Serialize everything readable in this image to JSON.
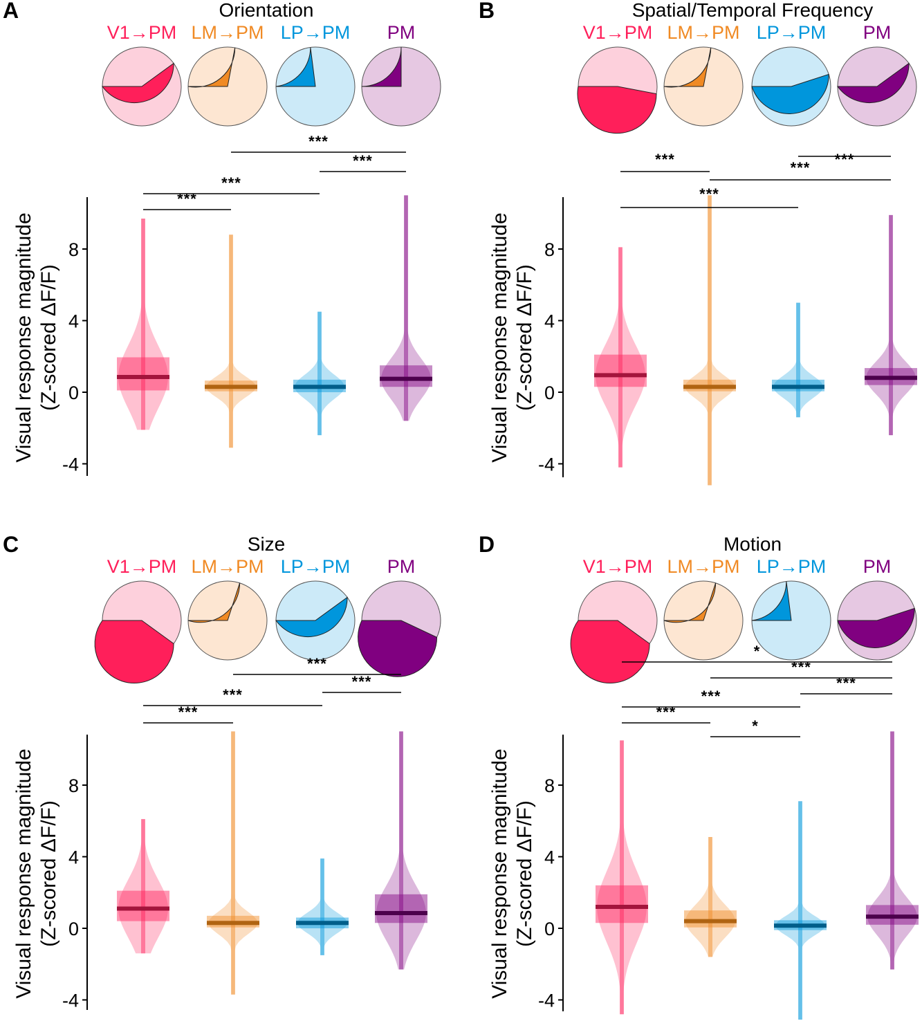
{
  "chart_data": [
    {
      "type": "violin",
      "panel_letter": "A",
      "title": "Orientation",
      "groups": [
        "V1→PM",
        "LM→PM",
        "LP→PM",
        "PM"
      ],
      "ylabel_line1": "Visual response magnitude",
      "ylabel_line2": "(Z-scored ΔF/F)",
      "yticks": [
        "8",
        "4",
        "0",
        "-4"
      ],
      "ylim": [
        -4.8,
        11
      ],
      "pie_selective_fraction": [
        0.4,
        0.28,
        0.23,
        0.25
      ],
      "medians": [
        0.85,
        0.3,
        0.3,
        0.75
      ],
      "iqr": [
        [
          0.1,
          1.95
        ],
        [
          0.05,
          0.65
        ],
        [
          0.0,
          0.7
        ],
        [
          0.3,
          1.5
        ]
      ],
      "ranges": [
        [
          -2.1,
          9.7
        ],
        [
          -3.1,
          8.8
        ],
        [
          -2.4,
          4.5
        ],
        [
          -1.6,
          11
        ]
      ],
      "significance": [
        {
          "from": 0,
          "to": 1,
          "label": "***"
        },
        {
          "from": 0,
          "to": 2,
          "label": "***"
        },
        {
          "from": 2,
          "to": 3,
          "label": "***"
        },
        {
          "from": 1,
          "to": 3,
          "label": "***"
        }
      ]
    },
    {
      "type": "violin",
      "panel_letter": "B",
      "title": "Spatial/Temporal Frequency",
      "groups": [
        "V1→PM",
        "LM→PM",
        "LP→PM",
        "PM"
      ],
      "ylabel_line1": "Visual response magnitude",
      "ylabel_line2": "(Z-scored ΔF/F)",
      "yticks": [
        "8",
        "4",
        "0",
        "-4"
      ],
      "ylim": [
        -4.8,
        11
      ],
      "pie_selective_fraction": [
        0.53,
        0.28,
        0.45,
        0.4
      ],
      "medians": [
        0.95,
        0.3,
        0.3,
        0.8
      ],
      "iqr": [
        [
          0.3,
          2.1
        ],
        [
          0.05,
          0.7
        ],
        [
          0.05,
          0.7
        ],
        [
          0.4,
          1.35
        ]
      ],
      "ranges": [
        [
          -4.2,
          8.1
        ],
        [
          -5.2,
          11
        ],
        [
          -1.4,
          5
        ],
        [
          -2.4,
          9.9
        ]
      ],
      "significance": [
        {
          "from": 2,
          "to": 3,
          "label": "***"
        },
        {
          "from": 1,
          "to": 3,
          "label": "***"
        },
        {
          "from": 0,
          "to": 1,
          "label": "***"
        },
        {
          "from": 0,
          "to": 2,
          "label": "***"
        }
      ]
    },
    {
      "type": "violin",
      "panel_letter": "C",
      "title": "Size",
      "groups": [
        "V1→PM",
        "LM→PM",
        "LP→PM",
        "PM"
      ],
      "ylabel_line1": "Visual response magnitude",
      "ylabel_line2": "(Z-scored ΔF/F)",
      "yticks": [
        "8",
        "4",
        "0",
        "-4"
      ],
      "ylim": [
        -4.8,
        11
      ],
      "pie_selective_fraction": [
        0.6,
        0.3,
        0.4,
        0.57
      ],
      "medians": [
        1.1,
        0.3,
        0.3,
        0.85
      ],
      "iqr": [
        [
          0.4,
          2.1
        ],
        [
          0.05,
          0.7
        ],
        [
          0.0,
          0.6
        ],
        [
          0.3,
          1.9
        ]
      ],
      "ranges": [
        [
          -1.4,
          6.1
        ],
        [
          -3.7,
          11
        ],
        [
          -1.5,
          3.9
        ],
        [
          -2.3,
          11
        ]
      ],
      "significance": [
        {
          "from": 0,
          "to": 1,
          "label": "***"
        },
        {
          "from": 0,
          "to": 2,
          "label": "***"
        },
        {
          "from": 2,
          "to": 3,
          "label": "***"
        },
        {
          "from": 1,
          "to": 3,
          "label": "***"
        }
      ]
    },
    {
      "type": "violin",
      "panel_letter": "D",
      "title": "Motion",
      "groups": [
        "V1→PM",
        "LM→PM",
        "LP→PM",
        "PM"
      ],
      "ylabel_line1": "Visual response magnitude",
      "ylabel_line2": "(Z-scored ΔF/F)",
      "yticks": [
        "8",
        "4",
        "0",
        "-4"
      ],
      "ylim": [
        -4.8,
        11
      ],
      "pie_selective_fraction": [
        0.6,
        0.3,
        0.23,
        0.45
      ],
      "medians": [
        1.2,
        0.4,
        0.15,
        0.65
      ],
      "iqr": [
        [
          0.3,
          2.4
        ],
        [
          0.05,
          1.0
        ],
        [
          -0.1,
          0.45
        ],
        [
          0.2,
          1.3
        ]
      ],
      "ranges": [
        [
          -4.8,
          10.5
        ],
        [
          -1.6,
          5.1
        ],
        [
          -5.1,
          7.1
        ],
        [
          -2.3,
          11
        ]
      ],
      "significance": [
        {
          "from": 1,
          "to": 2,
          "label": "*"
        },
        {
          "from": 0,
          "to": 1,
          "label": "***"
        },
        {
          "from": 2,
          "to": 3,
          "label": "***"
        },
        {
          "from": 0,
          "to": 2,
          "label": "***"
        },
        {
          "from": 1,
          "to": 3,
          "label": "***"
        },
        {
          "from": 0,
          "to": 3,
          "label": "*"
        }
      ]
    }
  ],
  "colors": {
    "groups_dark": [
      "#ff1f5a",
      "#f08a24",
      "#0096dc",
      "#800080"
    ],
    "groups_light": [
      "#fdd0dc",
      "#fde6d2",
      "#cceaf8",
      "#e6c8e2"
    ],
    "groups_median": [
      "#a3143c",
      "#b06412",
      "#005e8a",
      "#4c004c"
    ]
  }
}
